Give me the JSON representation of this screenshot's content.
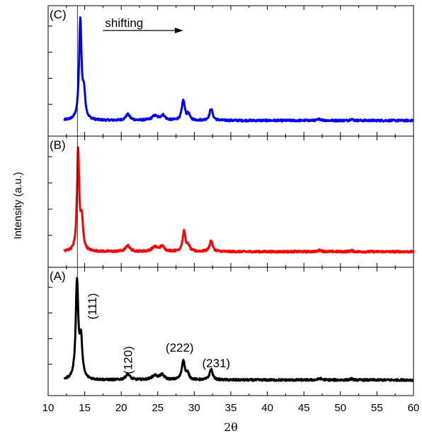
{
  "chart_data": {
    "type": "line",
    "xlabel": "2θ",
    "ylabel": "Intensity (a.u.)",
    "xlim": [
      10,
      60
    ],
    "x_ticks": [
      "10",
      "15",
      "20",
      "25",
      "30",
      "35",
      "40",
      "45",
      "50",
      "55",
      "60"
    ],
    "reference_line_x": 14.0,
    "annotation": {
      "text": "shifting",
      "arrow_from_x": 17.5,
      "arrow_to_x": 28.5
    },
    "panels": [
      {
        "label": "(C)",
        "color": "#0000ff",
        "peaks": [
          {
            "x": 14.4,
            "height": 1.0,
            "width": 0.28
          },
          {
            "x": 14.9,
            "height": 0.25,
            "width": 0.3
          },
          {
            "x": 20.9,
            "height": 0.06,
            "width": 0.5
          },
          {
            "x": 24.6,
            "height": 0.045,
            "width": 0.7
          },
          {
            "x": 25.7,
            "height": 0.05,
            "width": 0.5
          },
          {
            "x": 28.5,
            "height": 0.2,
            "width": 0.35
          },
          {
            "x": 29.2,
            "height": 0.06,
            "width": 0.3
          },
          {
            "x": 32.3,
            "height": 0.12,
            "width": 0.35
          },
          {
            "x": 47.2,
            "height": 0.015,
            "width": 0.4
          },
          {
            "x": 51.5,
            "height": 0.015,
            "width": 0.3
          }
        ],
        "baseline": 0.0
      },
      {
        "label": "(B)",
        "color": "#ff0000",
        "peaks": [
          {
            "x": 14.1,
            "height": 1.0,
            "width": 0.25
          },
          {
            "x": 14.6,
            "height": 0.3,
            "width": 0.3
          },
          {
            "x": 20.9,
            "height": 0.06,
            "width": 0.5
          },
          {
            "x": 24.6,
            "height": 0.045,
            "width": 0.7
          },
          {
            "x": 25.6,
            "height": 0.05,
            "width": 0.5
          },
          {
            "x": 28.6,
            "height": 0.2,
            "width": 0.35
          },
          {
            "x": 29.2,
            "height": 0.05,
            "width": 0.3
          },
          {
            "x": 32.3,
            "height": 0.11,
            "width": 0.35
          },
          {
            "x": 47.2,
            "height": 0.015,
            "width": 0.4
          },
          {
            "x": 51.5,
            "height": 0.012,
            "width": 0.3
          }
        ],
        "baseline": 0.0
      },
      {
        "label": "(A)",
        "color": "#000000",
        "peaks": [
          {
            "x": 13.95,
            "height": 1.0,
            "width": 0.3
          },
          {
            "x": 14.5,
            "height": 0.38,
            "width": 0.3
          },
          {
            "x": 20.9,
            "height": 0.06,
            "width": 0.5
          },
          {
            "x": 24.6,
            "height": 0.045,
            "width": 0.7
          },
          {
            "x": 25.6,
            "height": 0.05,
            "width": 0.5
          },
          {
            "x": 28.5,
            "height": 0.2,
            "width": 0.35
          },
          {
            "x": 29.1,
            "height": 0.06,
            "width": 0.3
          },
          {
            "x": 32.3,
            "height": 0.11,
            "width": 0.35
          },
          {
            "x": 47.2,
            "height": 0.015,
            "width": 0.4
          },
          {
            "x": 51.5,
            "height": 0.012,
            "width": 0.3
          }
        ],
        "baseline": 0.0,
        "peak_labels": [
          {
            "text": "(111)",
            "x": 16.0,
            "rotated": true
          },
          {
            "text": "(120)",
            "x": 20.9,
            "rotated": true
          },
          {
            "text": "(222)",
            "x": 28.0,
            "rotated": false
          },
          {
            "text": "(231)",
            "x": 33.0,
            "rotated": false
          }
        ]
      }
    ]
  }
}
